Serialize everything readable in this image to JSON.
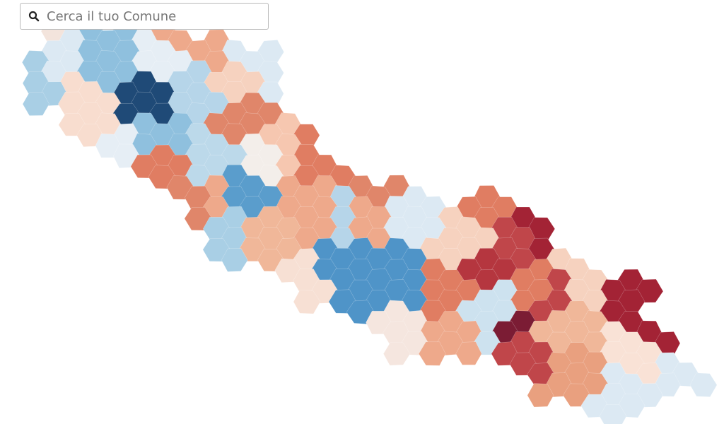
{
  "search": {
    "placeholder": "Cerca il tuo Comune"
  }
}
